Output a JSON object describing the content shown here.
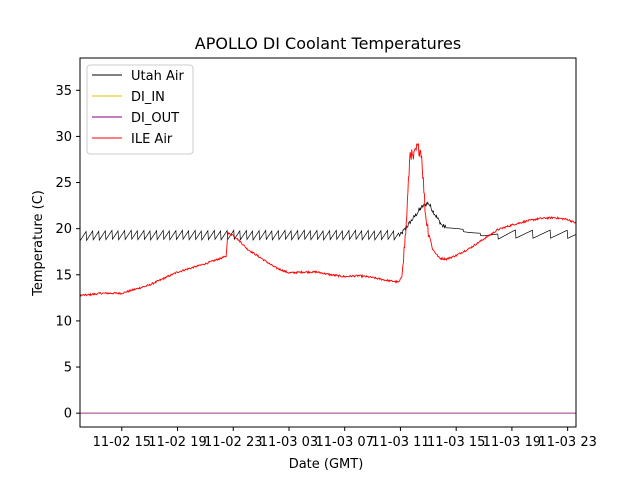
{
  "chart_data": {
    "type": "line",
    "title": "APOLLO DI Coolant Temperatures",
    "xlabel": "Date (GMT)",
    "ylabel": "Temperature (C)",
    "x_unit": "hours since 11-02 12:00 GMT",
    "xlim": [
      0,
      35.6
    ],
    "ylim": [
      -1.5,
      38.5
    ],
    "y_ticks": [
      0,
      5,
      10,
      15,
      20,
      25,
      30,
      35
    ],
    "x_ticks": [
      {
        "x": 3,
        "label": "11-02 15"
      },
      {
        "x": 7,
        "label": "11-02 19"
      },
      {
        "x": 11,
        "label": "11-02 23"
      },
      {
        "x": 15,
        "label": "11-03 03"
      },
      {
        "x": 19,
        "label": "11-03 07"
      },
      {
        "x": 23,
        "label": "11-03 11"
      },
      {
        "x": 27,
        "label": "11-03 15"
      },
      {
        "x": 31,
        "label": "11-03 19"
      },
      {
        "x": 35,
        "label": "11-03 23"
      }
    ],
    "legend_position": "top-left",
    "series": [
      {
        "name": "Utah Air",
        "color": "#000000",
        "pattern": "sawtooth",
        "x": [
          0,
          2,
          4,
          6,
          8,
          10,
          12,
          14,
          16,
          18,
          20,
          22,
          23.0,
          23.5,
          24.0,
          24.5,
          25.0,
          25.5,
          26.0,
          27.0,
          28.0,
          29.0,
          30.0,
          31.0,
          32.0,
          33.0,
          34.0,
          35.0,
          35.6
        ],
        "values": [
          19.2,
          19.3,
          19.3,
          19.3,
          19.3,
          19.3,
          19.3,
          19.3,
          19.3,
          19.3,
          19.3,
          19.3,
          19.3,
          20.3,
          21.3,
          22.3,
          22.8,
          21.5,
          20.3,
          20.0,
          19.6,
          19.3,
          19.3,
          19.4,
          19.4,
          19.4,
          19.4,
          19.4,
          19.4
        ]
      },
      {
        "name": "DI_IN",
        "color": "#e8c000",
        "x": [
          0,
          35.6
        ],
        "values": [
          0,
          0
        ]
      },
      {
        "name": "DI_OUT",
        "color": "#800080",
        "x": [
          0,
          35.6
        ],
        "values": [
          0,
          0
        ]
      },
      {
        "name": "ILE Air",
        "color": "#ff0000",
        "x": [
          0,
          0.5,
          1.5,
          3,
          5,
          7,
          9,
          10.5,
          10.6,
          11.0,
          11.5,
          12.0,
          13.0,
          14.0,
          15.0,
          16.0,
          17.0,
          18.0,
          19.0,
          20.0,
          21.0,
          22.0,
          22.9,
          23.1,
          23.4,
          23.7,
          23.9,
          24.2,
          24.5,
          24.8,
          25.0,
          25.3,
          25.8,
          26.3,
          27.0,
          28.0,
          29.0,
          30.0,
          31.0,
          32.0,
          33.0,
          34.0,
          35.0,
          35.6
        ],
        "values": [
          12.8,
          12.8,
          13.0,
          13.0,
          13.9,
          15.3,
          16.2,
          17.0,
          19.5,
          19.3,
          18.6,
          17.8,
          16.8,
          15.8,
          15.2,
          15.3,
          15.3,
          15.0,
          14.8,
          14.9,
          14.7,
          14.4,
          14.2,
          14.8,
          20.0,
          28.5,
          27.5,
          28.8,
          28.4,
          21.5,
          19.8,
          17.8,
          16.8,
          16.7,
          17.1,
          17.9,
          18.9,
          19.9,
          20.4,
          20.8,
          21.1,
          21.2,
          21.0,
          20.6
        ]
      }
    ]
  }
}
